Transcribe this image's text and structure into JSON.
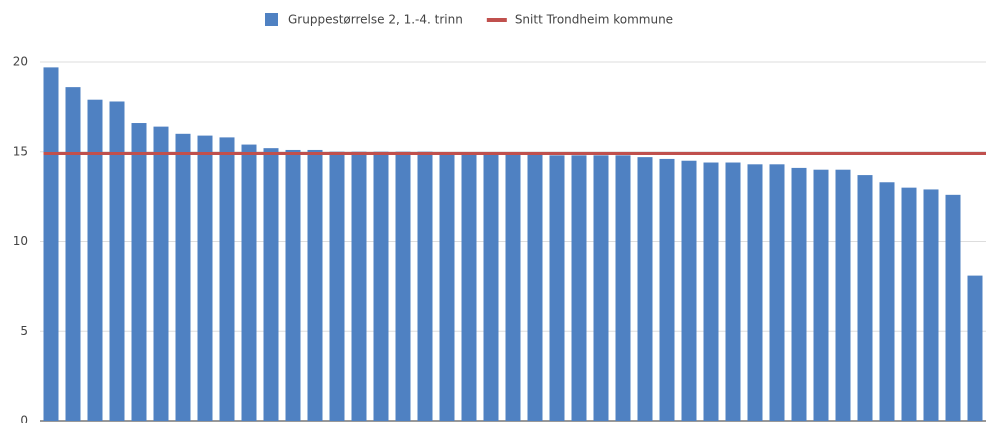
{
  "chart_data": {
    "type": "bar",
    "categories": [
      null,
      null,
      null,
      null,
      null,
      null,
      null,
      null,
      null,
      null,
      null,
      null,
      null,
      null,
      null,
      null,
      null,
      null,
      null,
      null,
      null,
      null,
      null,
      null,
      null,
      null,
      null,
      null,
      null,
      null,
      null,
      null,
      null,
      null,
      null,
      null,
      null,
      null,
      null,
      null,
      null,
      null,
      null
    ],
    "series": [
      {
        "name": "Gruppestørrelse 2, 1.-4. trinn",
        "type": "bar",
        "color": "#4f81c2",
        "values": [
          19.7,
          18.6,
          17.9,
          17.8,
          16.6,
          16.4,
          16.0,
          15.9,
          15.8,
          15.4,
          15.2,
          15.1,
          15.1,
          15.0,
          15.0,
          15.0,
          15.0,
          15.0,
          14.9,
          14.9,
          14.9,
          14.9,
          14.9,
          14.8,
          14.8,
          14.8,
          14.8,
          14.7,
          14.6,
          14.5,
          14.4,
          14.4,
          14.3,
          14.3,
          14.1,
          14.0,
          14.0,
          13.7,
          13.3,
          13.0,
          12.9,
          12.6,
          8.1
        ]
      },
      {
        "name": "Snitt Trondheim kommune",
        "type": "line",
        "color": "#c0504d",
        "values": [
          14.9,
          14.9,
          14.9,
          14.9,
          14.9,
          14.9,
          14.9,
          14.9,
          14.9,
          14.9,
          14.9,
          14.9,
          14.9,
          14.9,
          14.9,
          14.9,
          14.9,
          14.9,
          14.9,
          14.9,
          14.9,
          14.9,
          14.9,
          14.9,
          14.9,
          14.9,
          14.9,
          14.9,
          14.9,
          14.9,
          14.9,
          14.9,
          14.9,
          14.9,
          14.9,
          14.9,
          14.9,
          14.9,
          14.9,
          14.9,
          14.9,
          14.9,
          14.9
        ]
      }
    ],
    "ylim": [
      0,
      20
    ],
    "yticks": [
      0,
      5,
      10,
      15,
      20
    ],
    "grid": true,
    "legend": "top"
  }
}
